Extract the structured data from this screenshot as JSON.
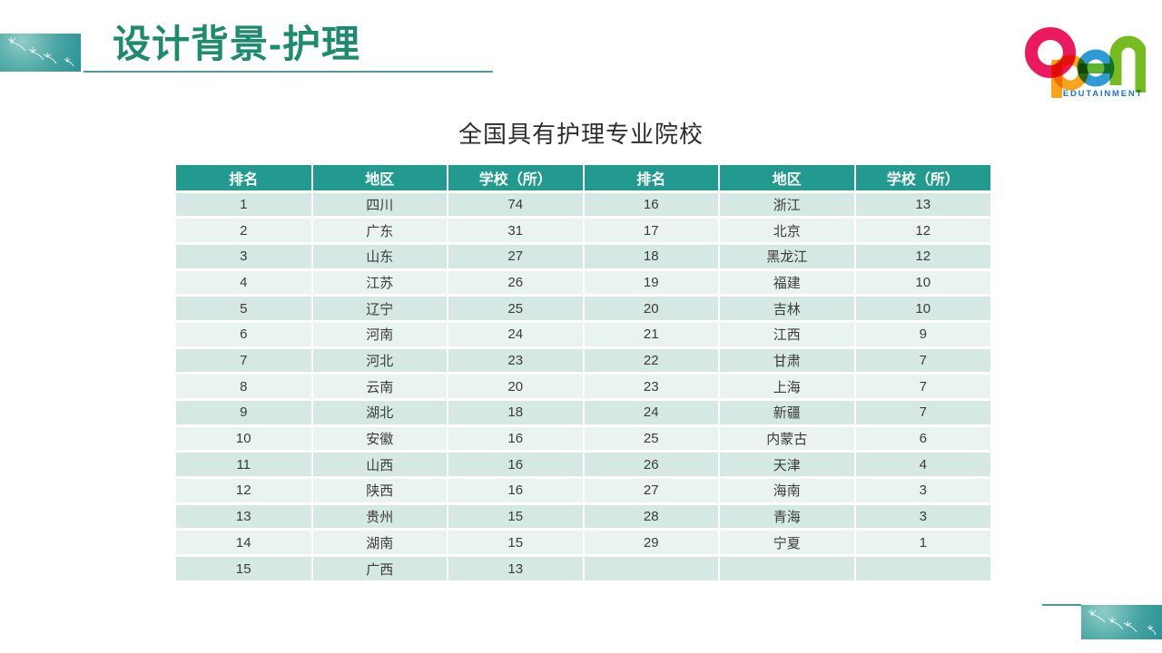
{
  "slide": {
    "title": "设计背景-护理",
    "table_title": "全国具有护理专业院校"
  },
  "logo": {
    "word": "open",
    "subtext": "EDUTAINMENT",
    "colors": {
      "o": "#EB1A5F",
      "p": "#F9A51C",
      "e": "#2E9BD6",
      "e_bar": "#5CB431",
      "n": "#76BC21",
      "subtext": "#1B75D0"
    }
  },
  "theme": {
    "accent": "#1E8A6E",
    "line": "#4D989A",
    "header_bg": "#229A90",
    "row_odd": "#D5E8E3",
    "row_even": "#E9F4F0"
  },
  "table": {
    "headers": [
      "排名",
      "地区",
      "学校（所）",
      "排名",
      "地区",
      "学校（所）"
    ],
    "rows": [
      [
        "1",
        "四川",
        "74",
        "16",
        "浙江",
        "13"
      ],
      [
        "2",
        "广东",
        "31",
        "17",
        "北京",
        "12"
      ],
      [
        "3",
        "山东",
        "27",
        "18",
        "黑龙江",
        "12"
      ],
      [
        "4",
        "江苏",
        "26",
        "19",
        "福建",
        "10"
      ],
      [
        "5",
        "辽宁",
        "25",
        "20",
        "吉林",
        "10"
      ],
      [
        "6",
        "河南",
        "24",
        "21",
        "江西",
        "9"
      ],
      [
        "7",
        "河北",
        "23",
        "22",
        "甘肃",
        "7"
      ],
      [
        "8",
        "云南",
        "20",
        "23",
        "上海",
        "7"
      ],
      [
        "9",
        "湖北",
        "18",
        "24",
        "新疆",
        "7"
      ],
      [
        "10",
        "安徽",
        "16",
        "25",
        "内蒙古",
        "6"
      ],
      [
        "11",
        "山西",
        "16",
        "26",
        "天津",
        "4"
      ],
      [
        "12",
        "陕西",
        "16",
        "27",
        "海南",
        "3"
      ],
      [
        "13",
        "贵州",
        "15",
        "28",
        "青海",
        "3"
      ],
      [
        "14",
        "湖南",
        "15",
        "29",
        "宁夏",
        "1"
      ],
      [
        "15",
        "广西",
        "13",
        "",
        "",
        ""
      ]
    ]
  }
}
